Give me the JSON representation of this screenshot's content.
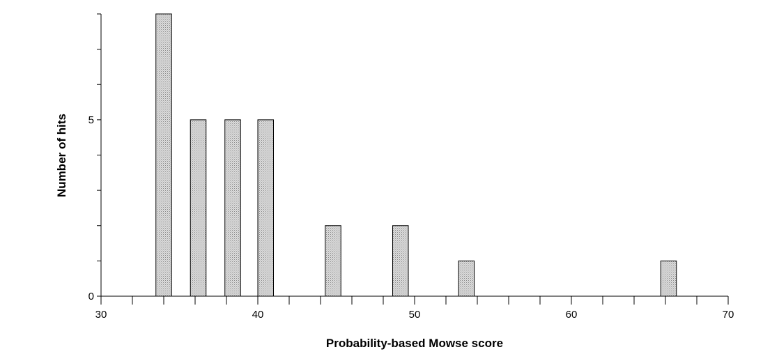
{
  "chart_data": {
    "type": "bar",
    "title": "",
    "xlabel": "Probability-based Mowse score",
    "ylabel": "Number of hits",
    "xlim": [
      30,
      70
    ],
    "ylim": [
      0,
      8
    ],
    "x_ticks": [
      30,
      40,
      50,
      60,
      70
    ],
    "y_ticks": [
      0,
      5
    ],
    "grid": false,
    "legend": "none",
    "bar_width": 1.0,
    "bar_fill": "#d4d4d4",
    "bar_stroke": "#000000",
    "series": [
      {
        "x": [
          34,
          36.2,
          38.4,
          40.5,
          44.8,
          49.1,
          53.3,
          66.2
        ],
        "values": [
          8,
          5,
          5,
          5,
          2,
          2,
          1,
          1
        ]
      }
    ]
  }
}
